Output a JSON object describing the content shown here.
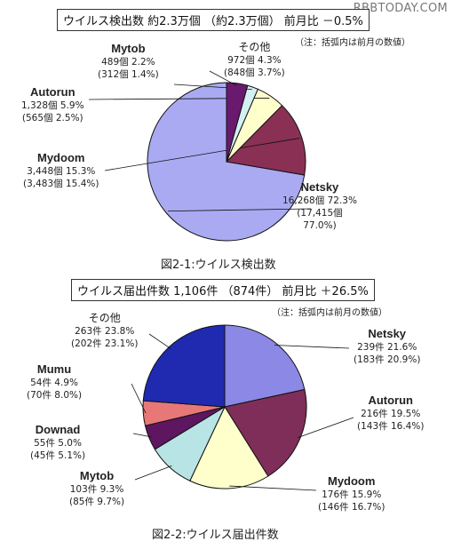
{
  "watermark": "RBBTODAY.COM",
  "chart_data": [
    {
      "type": "pie",
      "title": "ウイルス検出数 約2.3万個 （約2.3万個） 前月比 －0.5%",
      "note": "（注：括弧内は前月の数値）",
      "caption": "図2-1:ウイルス検出数",
      "slices": [
        {
          "name": "Netsky",
          "value": 72.3,
          "color": "#aaaaf2",
          "line1": "16,268個 72.3%",
          "line2": "(17,415個",
          "line3": "77.0%)"
        },
        {
          "name": "Mydoom",
          "value": 15.3,
          "color": "#8a3055",
          "line1": "3,448個 15.3%",
          "line2": "(3,483個 15.4%)"
        },
        {
          "name": "Autorun",
          "value": 5.9,
          "color": "#ffffcc",
          "line1": "1,328個 5.9%",
          "line2": "(565個 2.5%)"
        },
        {
          "name": "Mytob",
          "value": 2.2,
          "color": "#d4f0f2",
          "line1": "489個 2.2%",
          "line2": "(312個 1.4%)"
        },
        {
          "name": "その他",
          "value": 4.3,
          "color": "#6a1a6e",
          "line1": "972個 4.3%",
          "line2": "(848個 3.7%)"
        }
      ]
    },
    {
      "type": "pie",
      "title": "ウイルス届出件数 1,106件 （874件） 前月比 ＋26.5%",
      "note": "（注：括弧内は前月の数値）",
      "caption": "図2-2:ウイルス届出件数",
      "slices": [
        {
          "name": "Netsky",
          "value": 21.6,
          "color": "#8c88e6",
          "line1": "239件 21.6%",
          "line2": "(183件 20.9%)"
        },
        {
          "name": "Autorun",
          "value": 19.5,
          "color": "#7e2e58",
          "line1": "216件 19.5%",
          "line2": "(143件 16.4%)"
        },
        {
          "name": "Mydoom",
          "value": 15.9,
          "color": "#ffffcc",
          "line1": "176件 15.9%",
          "line2": "(146件 16.7%)"
        },
        {
          "name": "Mytob",
          "value": 9.3,
          "color": "#b8e4e6",
          "line1": "103件 9.3%",
          "line2": "(85件 9.7%)"
        },
        {
          "name": "Downad",
          "value": 5.0,
          "color": "#5e1660",
          "line1": "55件 5.0%",
          "line2": "(45件 5.1%)"
        },
        {
          "name": "Mumu",
          "value": 4.9,
          "color": "#e87878",
          "line1": "54件 4.9%",
          "line2": "(70件 8.0%)"
        },
        {
          "name": "その他",
          "value": 23.8,
          "color": "#1f2ab0",
          "line1": "263件 23.8%",
          "line2": "(202件 23.1%)"
        }
      ]
    }
  ]
}
